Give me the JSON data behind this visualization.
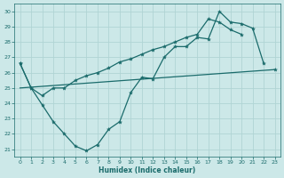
{
  "title": "",
  "xlabel": "Humidex (Indice chaleur)",
  "ylabel": "",
  "bg_color": "#cce8e8",
  "grid_color": "#b0d4d4",
  "line_color": "#1a6b6b",
  "xlim": [
    -0.5,
    23.5
  ],
  "ylim": [
    20.5,
    30.5
  ],
  "yticks": [
    21,
    22,
    23,
    24,
    25,
    26,
    27,
    28,
    29,
    30
  ],
  "xticks": [
    0,
    1,
    2,
    3,
    4,
    5,
    6,
    7,
    8,
    9,
    10,
    11,
    12,
    13,
    14,
    15,
    16,
    17,
    18,
    19,
    20,
    21,
    22,
    23
  ],
  "line1_x": [
    0,
    1,
    2,
    3,
    4,
    5,
    6,
    7,
    8,
    9,
    10,
    11,
    12,
    13,
    14,
    15,
    16,
    17,
    18,
    19,
    20,
    21,
    22
  ],
  "line1_y": [
    26.6,
    25.0,
    23.9,
    22.8,
    22.0,
    21.2,
    20.9,
    21.3,
    22.3,
    22.8,
    24.7,
    25.7,
    25.6,
    27.0,
    27.7,
    27.7,
    28.3,
    28.2,
    30.0,
    29.3,
    29.2,
    28.9,
    26.6
  ],
  "line2_x": [
    0,
    1,
    2,
    3,
    4,
    5,
    6,
    7,
    8,
    9,
    10,
    11,
    12,
    13,
    14,
    15,
    16,
    17,
    18,
    19,
    20,
    22,
    23
  ],
  "line2_y": [
    26.6,
    25.0,
    24.5,
    25.0,
    25.0,
    25.5,
    25.8,
    26.0,
    26.3,
    26.7,
    26.9,
    27.2,
    27.5,
    27.7,
    28.0,
    28.3,
    28.5,
    29.5,
    29.3,
    28.8,
    28.5,
    null,
    26.2
  ],
  "line3_x": [
    0,
    23
  ],
  "line3_y": [
    25.0,
    26.2
  ],
  "line2_has_null": true
}
